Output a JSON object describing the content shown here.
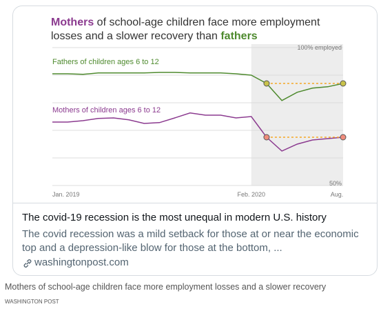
{
  "chart_data": {
    "type": "line",
    "title": [
      {
        "text": "Mothers",
        "color": "#8b3a8f"
      },
      {
        "text": " of school-age children face more employment losses and a slower recovery than "
      },
      {
        "text": "fathers",
        "color": "#4e8a2e"
      }
    ],
    "categories": [
      "Jan. 2019",
      null,
      null,
      null,
      null,
      null,
      null,
      null,
      null,
      null,
      null,
      null,
      null,
      "Feb. 2020",
      null,
      null,
      null,
      null,
      null,
      "Aug."
    ],
    "series": [
      {
        "name": "Fathers of children ages 6 to 12",
        "color": "#4e8a2e",
        "marker_color": "#c8c24a",
        "values": [
          90.5,
          90.5,
          90.3,
          90.8,
          90.8,
          90.8,
          90.8,
          91,
          91,
          90.8,
          90.8,
          90.8,
          90.5,
          90,
          87,
          80.8,
          83.8,
          85.3,
          85.8,
          87
        ]
      },
      {
        "name": "Mothers of children ages 6 to 12",
        "color": "#8b3a8f",
        "marker_color": "#f08c7c",
        "values": [
          73,
          73,
          73.5,
          74.3,
          74.5,
          73.8,
          72.5,
          72.8,
          74.5,
          76.3,
          75.5,
          75.5,
          74.5,
          75,
          67.5,
          62.5,
          65,
          66.5,
          67,
          67.5
        ]
      }
    ],
    "ylim": [
      50,
      100
    ],
    "yticks": [
      {
        "value": 50,
        "label": "50%"
      },
      {
        "value": 60,
        "label": null
      },
      {
        "value": 70,
        "label": null
      },
      {
        "value": 80,
        "label": null
      },
      {
        "value": 90,
        "label": null
      },
      {
        "value": 100,
        "label": "100% employed"
      }
    ],
    "grid": true,
    "reference_color": "#f5a623"
  },
  "card": {
    "headline": "The covid-19 recession is the most unequal in modern U.S. history",
    "description": "The covid recession was a mild setback for those at or near the economic top and a depression-like blow for those at the bottom, ...",
    "link": "washingtonpost.com"
  },
  "caption": "Mothers of school-age children face more employment losses and a slower recovery",
  "source": "WASHINGTON POST"
}
